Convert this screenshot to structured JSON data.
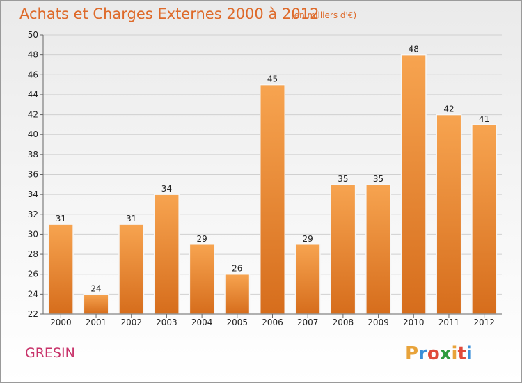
{
  "chart_data": {
    "type": "bar",
    "title": "Achats et Charges Externes 2000 à 2012",
    "subtitle": "(en milliers d'€)",
    "categories": [
      "2000",
      "2001",
      "2002",
      "2003",
      "2004",
      "2005",
      "2006",
      "2007",
      "2008",
      "2009",
      "2010",
      "2011",
      "2012"
    ],
    "values": [
      31,
      24,
      31,
      34,
      29,
      26,
      45,
      29,
      35,
      35,
      48,
      42,
      41
    ],
    "ylim": [
      22,
      50
    ],
    "yticks": [
      22,
      24,
      26,
      28,
      30,
      32,
      34,
      36,
      38,
      40,
      42,
      44,
      46,
      48,
      50
    ],
    "grid": true,
    "bar_color": "#f0913a",
    "bar_color_dark": "#d9701e",
    "title_color": "#de6a2a"
  },
  "commune": "GRESIN",
  "logo": {
    "letters": [
      "P",
      "r",
      "o",
      "x",
      "i",
      "t",
      "i"
    ],
    "colors": [
      "#e8a33a",
      "#3a8fd8",
      "#e04a3a",
      "#2e9c3e",
      "#e8a33a",
      "#e04a3a",
      "#3a8fd8"
    ]
  }
}
